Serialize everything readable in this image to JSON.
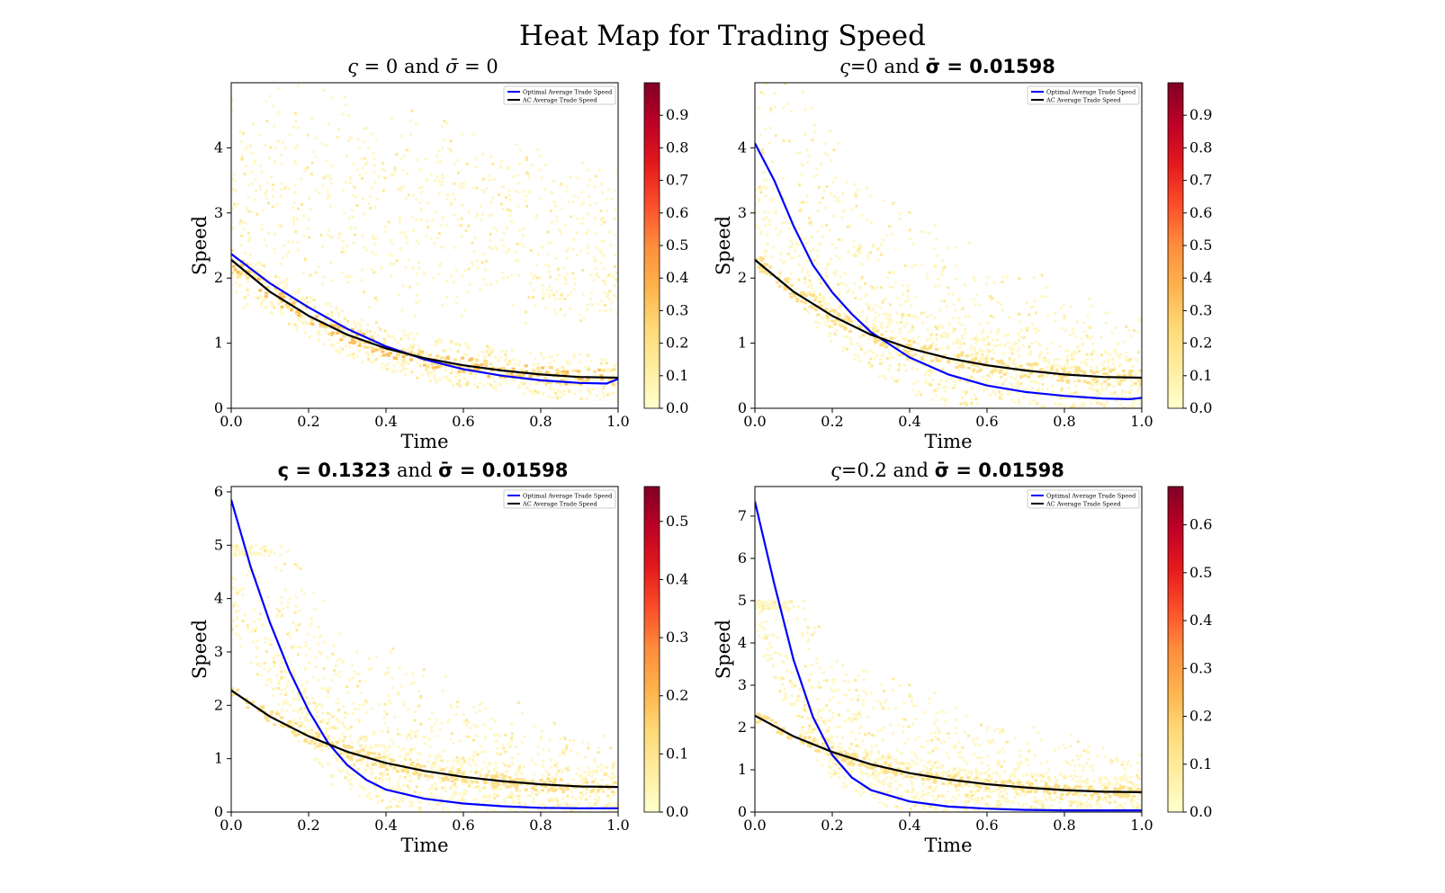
{
  "figure_title": "Heat Map for Trading Speed",
  "panels": [
    {
      "title_parts": [
        {
          "t": "ς",
          "s": "m"
        },
        {
          "t": " = 0 and ",
          "s": "n"
        },
        {
          "t": "σ̄",
          "s": "m"
        },
        {
          "t": " = 0",
          "s": "n"
        }
      ]
    },
    {
      "title_parts": [
        {
          "t": "ς",
          "s": "m"
        },
        {
          "t": "=0 and ",
          "s": "n"
        },
        {
          "t": "σ̄ = 0.01598",
          "s": "b"
        }
      ]
    },
    {
      "title_parts": [
        {
          "t": "ς = 0.1323",
          "s": "b"
        },
        {
          "t": " and ",
          "s": "n"
        },
        {
          "t": "σ̄ = 0.01598",
          "s": "b"
        }
      ]
    },
    {
      "title_parts": [
        {
          "t": "ς",
          "s": "m"
        },
        {
          "t": "=0.2 and ",
          "s": "n"
        },
        {
          "t": "σ̄ = 0.01598",
          "s": "b"
        }
      ]
    }
  ],
  "chart_data": [
    {
      "type": "heatmap",
      "title": "ς = 0 and σ̄ = 0",
      "xlabel": "Time",
      "ylabel": "Speed",
      "xlim": [
        0,
        1
      ],
      "ylim": [
        0,
        5
      ],
      "xticks": [
        "0.0",
        "0.2",
        "0.4",
        "0.6",
        "0.8",
        "1.0"
      ],
      "yticks": [
        0,
        1,
        2,
        3,
        4
      ],
      "colorbar": {
        "min": 0,
        "max": 1.0,
        "ticks": [
          "0.0",
          "0.1",
          "0.2",
          "0.3",
          "0.4",
          "0.5",
          "0.6",
          "0.7",
          "0.8",
          "0.9"
        ],
        "colormap": "YlOrRd"
      },
      "legend": {
        "position": "top-right",
        "entries": [
          "Optimal Average Trade Speed",
          "AC Average Trade Speed"
        ]
      },
      "series": [
        {
          "name": "Optimal Average Trade Speed",
          "color": "#0000ff",
          "x": [
            0,
            0.1,
            0.2,
            0.3,
            0.4,
            0.5,
            0.6,
            0.7,
            0.8,
            0.9,
            0.97,
            1.0
          ],
          "y": [
            2.37,
            1.92,
            1.55,
            1.22,
            0.95,
            0.75,
            0.6,
            0.5,
            0.43,
            0.39,
            0.38,
            0.45
          ]
        },
        {
          "name": "AC Average Trade Speed",
          "color": "#000000",
          "x": [
            0,
            0.1,
            0.2,
            0.3,
            0.4,
            0.5,
            0.6,
            0.7,
            0.8,
            0.9,
            1.0
          ],
          "y": [
            2.28,
            1.79,
            1.42,
            1.13,
            0.92,
            0.77,
            0.66,
            0.58,
            0.52,
            0.48,
            0.47
          ]
        }
      ]
    },
    {
      "type": "heatmap",
      "title": "ς=0 and σ̄ = 0.01598",
      "xlabel": "Time",
      "ylabel": "Speed",
      "xlim": [
        0,
        1
      ],
      "ylim": [
        0,
        5
      ],
      "xticks": [
        "0.0",
        "0.2",
        "0.4",
        "0.6",
        "0.8",
        "1.0"
      ],
      "yticks": [
        0,
        1,
        2,
        3,
        4
      ],
      "colorbar": {
        "min": 0,
        "max": 1.0,
        "ticks": [
          "0.0",
          "0.1",
          "0.2",
          "0.3",
          "0.4",
          "0.5",
          "0.6",
          "0.7",
          "0.8",
          "0.9"
        ],
        "colormap": "YlOrRd"
      },
      "legend": {
        "position": "top-right",
        "entries": [
          "Optimal Average Trade Speed",
          "AC Average Trade Speed"
        ]
      },
      "series": [
        {
          "name": "Optimal Average Trade Speed",
          "color": "#0000ff",
          "x": [
            0,
            0.05,
            0.1,
            0.15,
            0.2,
            0.25,
            0.3,
            0.4,
            0.5,
            0.6,
            0.7,
            0.8,
            0.9,
            0.97,
            1.0
          ],
          "y": [
            4.07,
            3.5,
            2.8,
            2.2,
            1.78,
            1.45,
            1.17,
            0.78,
            0.52,
            0.35,
            0.25,
            0.19,
            0.15,
            0.14,
            0.16
          ]
        },
        {
          "name": "AC Average Trade Speed",
          "color": "#000000",
          "x": [
            0,
            0.1,
            0.2,
            0.3,
            0.4,
            0.5,
            0.6,
            0.7,
            0.8,
            0.9,
            1.0
          ],
          "y": [
            2.28,
            1.79,
            1.42,
            1.13,
            0.92,
            0.77,
            0.66,
            0.58,
            0.52,
            0.48,
            0.47
          ]
        }
      ]
    },
    {
      "type": "heatmap",
      "title": "ς = 0.1323 and σ̄ = 0.01598",
      "xlabel": "Time",
      "ylabel": "Speed",
      "xlim": [
        0,
        1
      ],
      "ylim": [
        0,
        6.1
      ],
      "xticks": [
        "0.0",
        "0.2",
        "0.4",
        "0.6",
        "0.8",
        "1.0"
      ],
      "yticks": [
        0,
        1,
        2,
        3,
        4,
        5,
        6
      ],
      "colorbar": {
        "min": 0,
        "max": 0.56,
        "ticks": [
          "0.0",
          "0.1",
          "0.2",
          "0.3",
          "0.4",
          "0.5"
        ],
        "colormap": "YlOrRd"
      },
      "legend": {
        "position": "top-right",
        "entries": [
          "Optimal Average Trade Speed",
          "AC Average Trade Speed"
        ]
      },
      "series": [
        {
          "name": "Optimal Average Trade Speed",
          "color": "#0000ff",
          "x": [
            0,
            0.05,
            0.1,
            0.15,
            0.2,
            0.25,
            0.3,
            0.35,
            0.4,
            0.5,
            0.6,
            0.7,
            0.8,
            0.9,
            1.0
          ],
          "y": [
            5.85,
            4.6,
            3.55,
            2.65,
            1.9,
            1.3,
            0.88,
            0.6,
            0.42,
            0.25,
            0.16,
            0.11,
            0.08,
            0.07,
            0.07
          ]
        },
        {
          "name": "AC Average Trade Speed",
          "color": "#000000",
          "x": [
            0,
            0.1,
            0.2,
            0.3,
            0.4,
            0.5,
            0.6,
            0.7,
            0.8,
            0.9,
            1.0
          ],
          "y": [
            2.28,
            1.79,
            1.42,
            1.13,
            0.92,
            0.77,
            0.66,
            0.58,
            0.52,
            0.48,
            0.47
          ]
        }
      ]
    },
    {
      "type": "heatmap",
      "title": "ς=0.2 and σ̄ = 0.01598",
      "xlabel": "Time",
      "ylabel": "Speed",
      "xlim": [
        0,
        1
      ],
      "ylim": [
        0,
        7.7
      ],
      "xticks": [
        "0.0",
        "0.2",
        "0.4",
        "0.6",
        "0.8",
        "1.0"
      ],
      "yticks": [
        0,
        1,
        2,
        3,
        4,
        5,
        6,
        7
      ],
      "colorbar": {
        "min": 0,
        "max": 0.68,
        "ticks": [
          "0.0",
          "0.1",
          "0.2",
          "0.3",
          "0.4",
          "0.5",
          "0.6"
        ],
        "colormap": "YlOrRd"
      },
      "legend": {
        "position": "top-right",
        "entries": [
          "Optimal Average Trade Speed",
          "AC Average Trade Speed"
        ]
      },
      "series": [
        {
          "name": "Optimal Average Trade Speed",
          "color": "#0000ff",
          "x": [
            0,
            0.05,
            0.1,
            0.15,
            0.2,
            0.25,
            0.3,
            0.4,
            0.5,
            0.6,
            0.7,
            0.8,
            0.9,
            1.0
          ],
          "y": [
            7.35,
            5.4,
            3.6,
            2.25,
            1.35,
            0.82,
            0.52,
            0.25,
            0.13,
            0.08,
            0.05,
            0.04,
            0.04,
            0.04
          ]
        },
        {
          "name": "AC Average Trade Speed",
          "color": "#000000",
          "x": [
            0,
            0.1,
            0.2,
            0.3,
            0.4,
            0.5,
            0.6,
            0.7,
            0.8,
            0.9,
            1.0
          ],
          "y": [
            2.28,
            1.79,
            1.42,
            1.13,
            0.92,
            0.77,
            0.66,
            0.58,
            0.52,
            0.48,
            0.47
          ]
        }
      ]
    }
  ]
}
